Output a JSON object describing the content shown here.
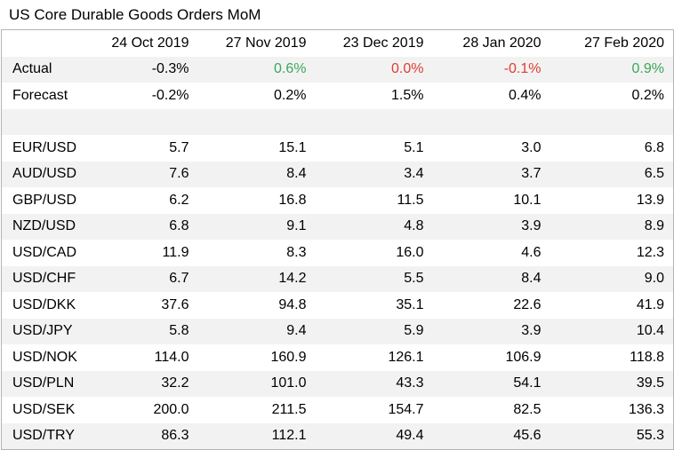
{
  "title": "US Core Durable Goods Orders MoM",
  "columns": [
    "24 Oct 2019",
    "27 Nov 2019",
    "23 Dec 2019",
    "28 Jan 2020",
    "27 Feb 2020"
  ],
  "actual": {
    "label": "Actual",
    "values": [
      "-0.3%",
      "0.6%",
      "0.0%",
      "-0.1%",
      "0.9%"
    ],
    "colors": [
      "#000000",
      "#3aa757",
      "#e03c31",
      "#e03c31",
      "#3aa757"
    ]
  },
  "forecast": {
    "label": "Forecast",
    "values": [
      "-0.2%",
      "0.2%",
      "1.5%",
      "0.4%",
      "0.2%"
    ]
  },
  "pairs": [
    {
      "label": "EUR/USD",
      "values": [
        "5.7",
        "15.1",
        "5.1",
        "3.0",
        "6.8"
      ]
    },
    {
      "label": "AUD/USD",
      "values": [
        "7.6",
        "8.4",
        "3.4",
        "3.7",
        "6.5"
      ]
    },
    {
      "label": "GBP/USD",
      "values": [
        "6.2",
        "16.8",
        "11.5",
        "10.1",
        "13.9"
      ]
    },
    {
      "label": "NZD/USD",
      "values": [
        "6.8",
        "9.1",
        "4.8",
        "3.9",
        "8.9"
      ]
    },
    {
      "label": "USD/CAD",
      "values": [
        "11.9",
        "8.3",
        "16.0",
        "4.6",
        "12.3"
      ]
    },
    {
      "label": "USD/CHF",
      "values": [
        "6.7",
        "14.2",
        "5.5",
        "8.4",
        "9.0"
      ]
    },
    {
      "label": "USD/DKK",
      "values": [
        "37.6",
        "94.8",
        "35.1",
        "22.6",
        "41.9"
      ]
    },
    {
      "label": "USD/JPY",
      "values": [
        "5.8",
        "9.4",
        "5.9",
        "3.9",
        "10.4"
      ]
    },
    {
      "label": "USD/NOK",
      "values": [
        "114.0",
        "160.9",
        "126.1",
        "106.9",
        "118.8"
      ]
    },
    {
      "label": "USD/PLN",
      "values": [
        "32.2",
        "101.0",
        "43.3",
        "54.1",
        "39.5"
      ]
    },
    {
      "label": "USD/SEK",
      "values": [
        "200.0",
        "211.5",
        "154.7",
        "82.5",
        "136.3"
      ]
    },
    {
      "label": "USD/TRY",
      "values": [
        "86.3",
        "112.1",
        "49.4",
        "45.6",
        "55.3"
      ]
    }
  ]
}
